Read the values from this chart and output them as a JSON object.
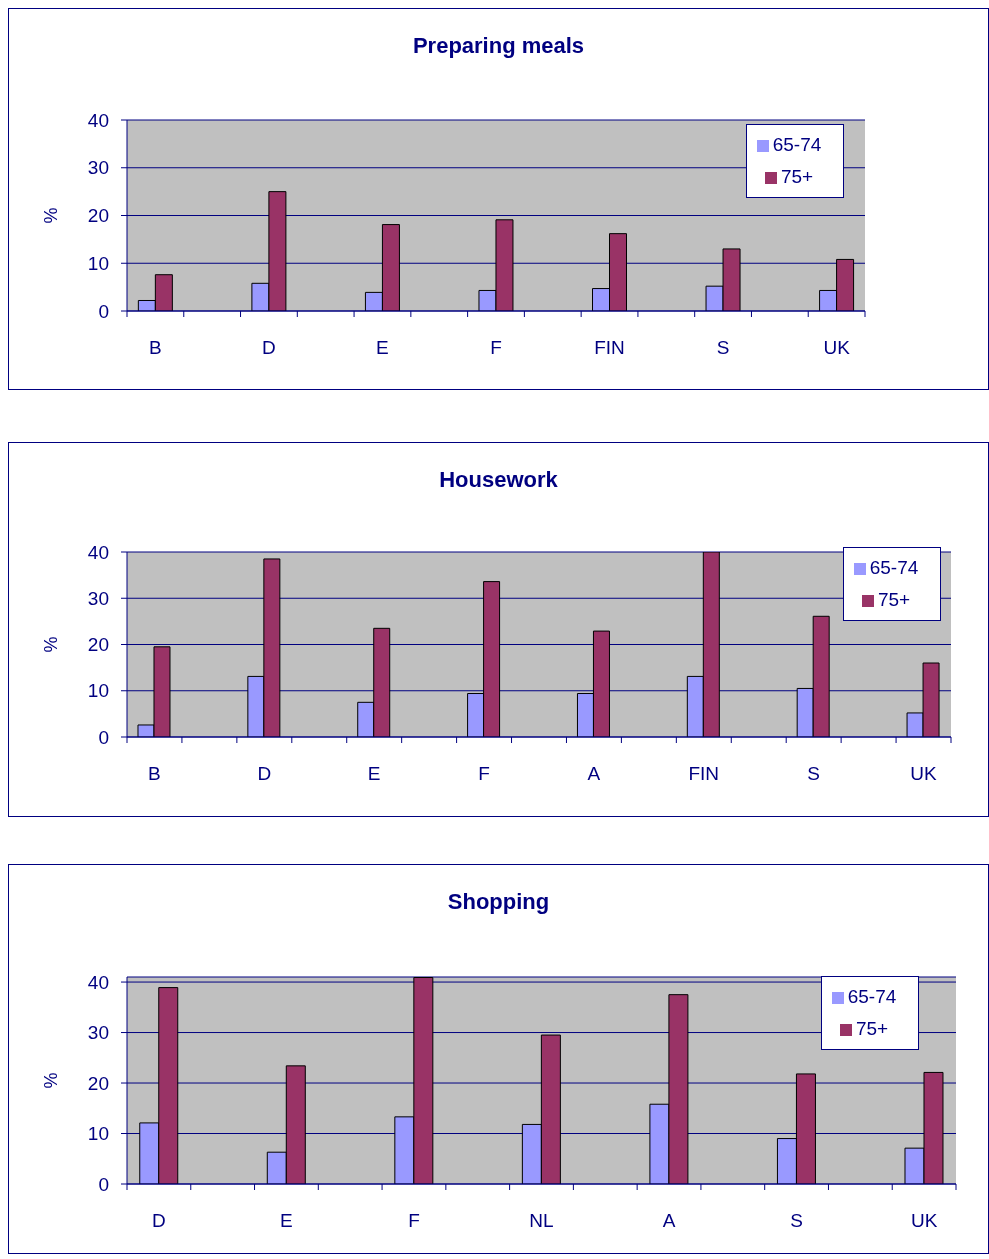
{
  "chart_data": [
    {
      "type": "bar",
      "title": "Preparing meals",
      "ylabel": "%",
      "categories": [
        "B",
        null,
        "D",
        null,
        "E",
        null,
        "F",
        null,
        "FIN",
        null,
        "S",
        null,
        "UK"
      ],
      "series": [
        {
          "name": "65-74",
          "color": "#9999ff",
          "values": [
            2.2,
            null,
            5.8,
            null,
            3.9,
            null,
            4.3,
            null,
            4.7,
            null,
            5.2,
            null,
            4.3
          ]
        },
        {
          "name": "75+",
          "color": "#993366",
          "values": [
            7.6,
            null,
            25,
            null,
            18.1,
            null,
            19.1,
            null,
            16.2,
            null,
            13,
            null,
            10.8
          ]
        }
      ],
      "ylim": [
        0,
        40
      ],
      "yticks": [
        0,
        10,
        20,
        30,
        40
      ],
      "grid": "y",
      "legend": "top right"
    },
    {
      "type": "bar",
      "title": "Housework",
      "ylabel": "%",
      "categories": [
        "B",
        null,
        "D",
        null,
        "E",
        null,
        "F",
        null,
        "A",
        null,
        "FIN",
        null,
        "S",
        null,
        "UK"
      ],
      "series": [
        {
          "name": "65-74",
          "color": "#9999ff",
          "values": [
            2.6,
            null,
            13.1,
            null,
            7.5,
            null,
            9.4,
            null,
            9.4,
            null,
            13.1,
            null,
            10.5,
            null,
            5.2
          ]
        },
        {
          "name": "75+",
          "color": "#993366",
          "values": [
            19.5,
            null,
            38.5,
            null,
            23.5,
            null,
            33.6,
            null,
            22.9,
            null,
            40,
            null,
            26.1,
            null,
            16
          ]
        }
      ],
      "ylim": [
        0,
        40
      ],
      "yticks": [
        0,
        10,
        20,
        30,
        40
      ],
      "grid": "y",
      "legend": "top right"
    },
    {
      "type": "bar",
      "title": "Shopping",
      "ylabel": "%",
      "categories": [
        "D",
        null,
        "E",
        null,
        "F",
        null,
        "NL",
        null,
        "A",
        null,
        "S",
        null,
        "UK"
      ],
      "series": [
        {
          "name": "65-74",
          "color": "#9999ff",
          "values": [
            12.1,
            null,
            6.3,
            null,
            13.3,
            null,
            11.8,
            null,
            15.8,
            null,
            9,
            null,
            7.1
          ]
        },
        {
          "name": "75+",
          "color": "#993366",
          "values": [
            38.9,
            null,
            23.4,
            null,
            40.9,
            null,
            29.5,
            null,
            37.5,
            null,
            21.8,
            null,
            22.1
          ]
        }
      ],
      "ylim": [
        0,
        41
      ],
      "yticks": [
        0,
        10,
        20,
        30,
        40
      ],
      "grid": "y",
      "legend": "top right"
    }
  ]
}
